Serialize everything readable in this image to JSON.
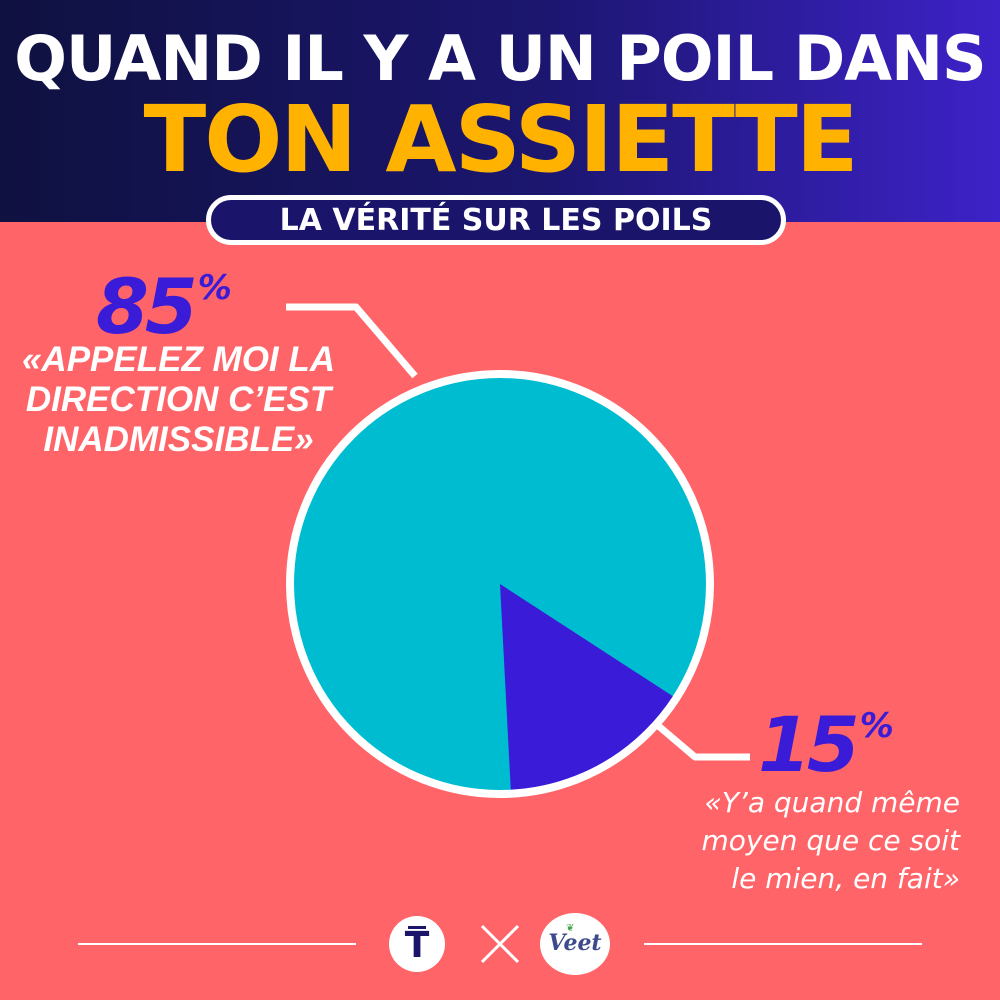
{
  "header": {
    "title_line1": "QUAND IL Y A UN POIL DANS",
    "title_line2": "TON ASSIETTE",
    "subtitle": "LA VÉRITÉ SUR LES POILS"
  },
  "chart_data": {
    "type": "pie",
    "series": [
      {
        "values": [
          85,
          15
        ],
        "colors": [
          "#00bcd0",
          "#3a1bd8"
        ]
      }
    ],
    "labels": [
      "85%",
      "15%"
    ],
    "annotations": [
      "«APPELEZ MOI LA DIRECTION C’EST INADMISSIBLE»",
      "«Y’a quand même moyen que ce soit le mien, en fait»"
    ]
  },
  "slices": {
    "big": {
      "num": "85",
      "sym": "%",
      "quote": "«APPELEZ MOI LA\nDIRECTION C’EST\nINADMISSIBLE»"
    },
    "small": {
      "num": "15",
      "sym": "%",
      "quote": "«Y’a quand même\nmoyen que ce soit\nle mien, en fait»"
    }
  },
  "footer": {
    "logo_left_text": "T",
    "logo_right_text": "Veet",
    "logo_left_icon": "t-brand-logo",
    "logo_right_icon": "veet-brand-logo",
    "separator_icon": "cross-icon"
  },
  "colors": {
    "background": "#ff6468",
    "header_dark": "#0f1140",
    "header_accent": "#3d22c8",
    "title_yellow": "#ffb300",
    "pie_big": "#00bcd0",
    "pie_small": "#3a1bd8",
    "percent_text": "#3a1bd8"
  }
}
